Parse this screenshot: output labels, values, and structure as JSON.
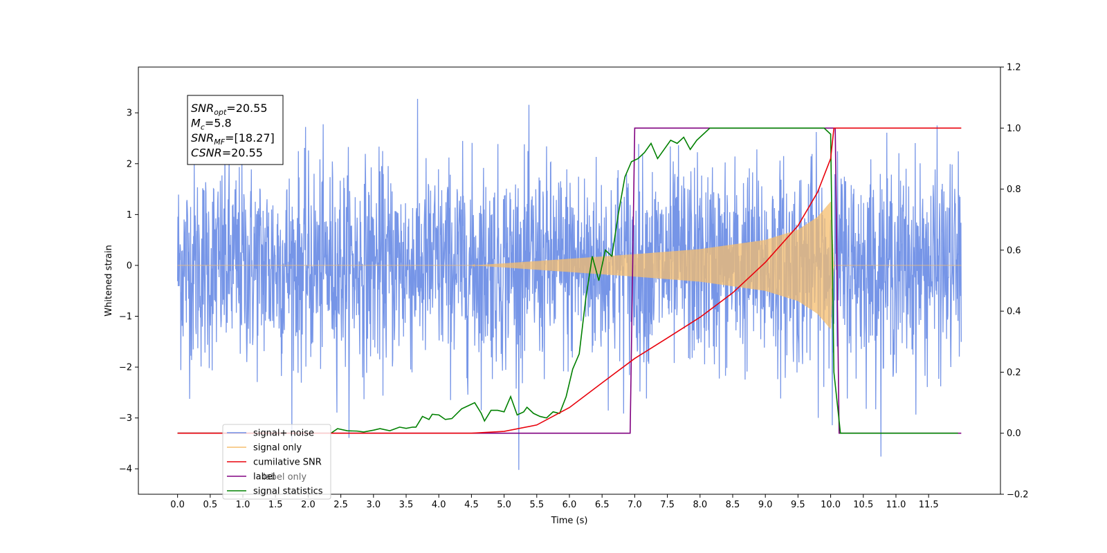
{
  "chart_data": {
    "type": "line",
    "title": "",
    "xlabel": "Time (s)",
    "ylabel_left": "Whitened strain",
    "ylabel_right": "",
    "xlim": [
      -0.6,
      12.6
    ],
    "ylim_left": [
      -4.5,
      3.9
    ],
    "ylim_right": [
      -0.2,
      1.2
    ],
    "grid": false,
    "legend_position": "lower-left",
    "x_tick_labels": [
      "0.0",
      "0.5",
      "1.0",
      "1.5",
      "2.0",
      "2.5",
      "3.0",
      "3.5",
      "4.0",
      "4.5",
      "5.0",
      "5.5",
      "6.0",
      "6.5",
      "7.0",
      "7.5",
      "8.0",
      "8.5",
      "9.0",
      "9.5",
      "10.0",
      "10.5",
      "11.0",
      "11.5"
    ],
    "y_left_tick_labels": [
      "3",
      "2",
      "1",
      "0",
      "−1",
      "−2",
      "−3",
      "−4"
    ],
    "y_left_tick_values": [
      3,
      2,
      1,
      0,
      -1,
      -2,
      -3,
      -4
    ],
    "y_right_tick_labels": [
      "1.2",
      "1.0",
      "0.8",
      "0.6",
      "0.4",
      "0.2",
      "0.0",
      "−0.2"
    ],
    "y_right_tick_values": [
      1.2,
      1.0,
      0.8,
      0.6,
      0.4,
      0.2,
      0.0,
      -0.2
    ],
    "annotation": {
      "lines": [
        {
          "sym": "SNR",
          "sub": "opt",
          "rest": "=20.55"
        },
        {
          "sym": "M",
          "sub": "c",
          "rest": "=5.8"
        },
        {
          "sym": "SNR",
          "sub": "MF",
          "rest": "=[18.27]"
        },
        {
          "sym": "CSNR",
          "sub": "",
          "rest": "=20.55"
        }
      ]
    },
    "colors": {
      "noise": "#6f8fe6",
      "signal": "#f5bd6e",
      "csnr": "#e8000b",
      "label": "#800080",
      "stats": "#008000"
    },
    "series": [
      {
        "name": "signal+ noise",
        "axis": "left",
        "kind": "noise",
        "description_values": {
          "x_start": 0.0,
          "x_end": 12.0,
          "std": 1.0,
          "peak_abs": 4.1
        }
      },
      {
        "name": "signal only",
        "axis": "left",
        "kind": "chirp",
        "values_envelope": {
          "x": [
            0.0,
            4.5,
            5.0,
            6.0,
            7.0,
            8.0,
            9.0,
            9.5,
            9.8,
            10.0,
            10.05
          ],
          "y": [
            0.0,
            0.0,
            0.04,
            0.13,
            0.22,
            0.32,
            0.5,
            0.7,
            0.95,
            1.25,
            0.0
          ]
        },
        "x_after": [
          10.05,
          12.0
        ]
      },
      {
        "name": "cumilative SNR",
        "axis": "right",
        "x": [
          0.0,
          4.5,
          5.0,
          5.5,
          6.0,
          6.5,
          7.0,
          7.5,
          8.0,
          8.5,
          9.0,
          9.5,
          9.8,
          10.0,
          10.05,
          12.0
        ],
        "y": [
          0.0,
          0.0,
          0.006,
          0.027,
          0.084,
          0.165,
          0.245,
          0.312,
          0.38,
          0.46,
          0.56,
          0.68,
          0.79,
          0.9,
          1.0,
          1.0
        ]
      },
      {
        "name": "label",
        "axis": "right",
        "x": [
          0.0,
          6.93,
          7.0,
          10.07,
          10.13,
          12.0
        ],
        "y": [
          0.0,
          0.0,
          1.0,
          1.0,
          0.0,
          0.0
        ]
      },
      {
        "name": "label only",
        "axis": "right",
        "hidden": true,
        "x": [],
        "y": []
      },
      {
        "name": "signal statistics",
        "axis": "right",
        "x": [
          0.0,
          2.0,
          2.2,
          2.35,
          2.45,
          2.6,
          2.75,
          2.85,
          3.0,
          3.1,
          3.25,
          3.4,
          3.5,
          3.6,
          3.65,
          3.75,
          3.85,
          3.9,
          4.0,
          4.1,
          4.2,
          4.35,
          4.45,
          4.55,
          4.65,
          4.7,
          4.8,
          4.9,
          5.0,
          5.1,
          5.2,
          5.3,
          5.35,
          5.45,
          5.55,
          5.65,
          5.75,
          5.85,
          5.95,
          6.05,
          6.15,
          6.25,
          6.35,
          6.45,
          6.55,
          6.65,
          6.75,
          6.85,
          6.95,
          7.05,
          7.15,
          7.25,
          7.35,
          7.45,
          7.55,
          7.65,
          7.75,
          7.85,
          7.95,
          8.05,
          8.15,
          8.25,
          8.5,
          9.0,
          9.5,
          9.9,
          10.0,
          10.05,
          10.15,
          11.95
        ],
        "y": [
          0.0,
          0.0,
          0.0,
          0.0,
          0.015,
          0.008,
          0.007,
          0.004,
          0.01,
          0.015,
          0.008,
          0.02,
          0.016,
          0.02,
          0.02,
          0.055,
          0.045,
          0.062,
          0.06,
          0.045,
          0.048,
          0.08,
          0.09,
          0.1,
          0.065,
          0.04,
          0.075,
          0.075,
          0.07,
          0.12,
          0.06,
          0.07,
          0.085,
          0.065,
          0.055,
          0.05,
          0.07,
          0.065,
          0.12,
          0.21,
          0.26,
          0.44,
          0.58,
          0.5,
          0.6,
          0.58,
          0.72,
          0.84,
          0.89,
          0.9,
          0.92,
          0.95,
          0.9,
          0.93,
          0.96,
          0.95,
          0.97,
          0.93,
          0.96,
          0.98,
          1.0,
          1.0,
          1.0,
          1.0,
          1.0,
          1.0,
          0.98,
          0.2,
          0.0,
          0.0
        ]
      }
    ]
  }
}
